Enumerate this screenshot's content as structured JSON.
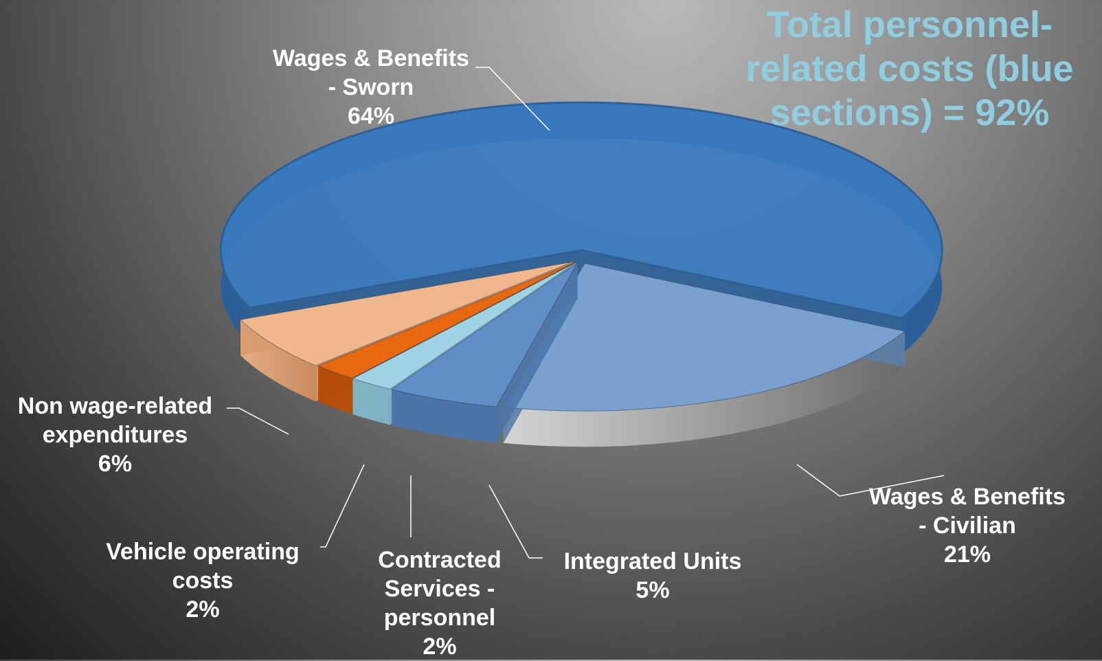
{
  "chart_data": {
    "type": "pie",
    "style": "3d-exploded",
    "slices": [
      {
        "label": "Wages & Benefits - Sworn",
        "value": 64,
        "display": "64%",
        "color": "#3a7cc1"
      },
      {
        "label": "Wages & Benefits - Civilian",
        "value": 21,
        "display": "21%",
        "color": "#7aa0cf"
      },
      {
        "label": "Integrated Units",
        "value": 5,
        "display": "5%",
        "color": "#5f8fc6"
      },
      {
        "label": "Contracted Services - personnel",
        "value": 2,
        "display": "2%",
        "color": "#9fd3e4"
      },
      {
        "label": "Vehicle operating costs",
        "value": 2,
        "display": "2%",
        "color": "#e8680f"
      },
      {
        "label": "Non wage-related expenditures",
        "value": 6,
        "display": "6%",
        "color": "#f0b68c"
      }
    ],
    "legend": "none",
    "annotation": "Total personnel-related costs (blue sections) = 92%"
  },
  "labels": {
    "sworn": [
      "Wages & Benefits",
      "- Sworn",
      "64%"
    ],
    "civilian": [
      "Wages & Benefits",
      "- Civilian",
      "21%"
    ],
    "integrated": [
      "Integrated Units",
      "5%"
    ],
    "contracted": [
      "Contracted",
      "Services -",
      "personnel",
      "2%"
    ],
    "vehicle": [
      "Vehicle operating",
      "costs",
      "2%"
    ],
    "nonwage": [
      "Non wage-related",
      "expenditures",
      "6%"
    ]
  },
  "annotation": {
    "lines": [
      "Total personnel-",
      "related costs (blue",
      "sections) = 92%"
    ],
    "color": "#8fcde0"
  }
}
